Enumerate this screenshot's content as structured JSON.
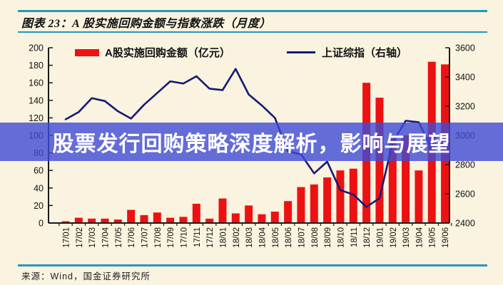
{
  "header": {
    "title": "图表 23：A 股实施回购金额与指数涨跌（月度）"
  },
  "legend": {
    "items": [
      {
        "label": "A股实施回购金额（亿元）",
        "swatch": "bar-swatch",
        "color": "#ee1111"
      },
      {
        "label": "上证综指（右轴）",
        "swatch": "line-swatch",
        "color": "#181878"
      }
    ]
  },
  "watermark": {
    "text": "股票发行回购策略深度解析，影响与展望"
  },
  "footer": {
    "source": "来源：Wind，国金证券研究所"
  },
  "colors": {
    "background": "#f9f3df",
    "rule": "#2499bd",
    "bar": "#ee1111",
    "line": "#181878",
    "axis": "#1a1a1a",
    "band": "rgba(62,74,214,0.80)"
  },
  "chart_data": {
    "type": "bar",
    "title": "图表 23：A 股实施回购金额与指数涨跌（月度）",
    "categories": [
      "17/01",
      "17/02",
      "17/03",
      "17/04",
      "17/05",
      "17/06",
      "17/07",
      "17/08",
      "17/09",
      "17/10",
      "17/11",
      "17/12",
      "18/01",
      "18/02",
      "18/03",
      "18/04",
      "18/05",
      "18/06",
      "18/07",
      "18/08",
      "18/09",
      "18/10",
      "18/11",
      "18/12",
      "19/01",
      "19/02",
      "19/03",
      "19/04",
      "19/05",
      "19/06"
    ],
    "series": [
      {
        "name": "A股实施回购金额（亿元）",
        "type": "bar",
        "axis": "left",
        "values": [
          2,
          6,
          5,
          5,
          4,
          15,
          9,
          12,
          6,
          7,
          22,
          5,
          28,
          11,
          20,
          10,
          13,
          25,
          41,
          44,
          52,
          60,
          62,
          160,
          143,
          100,
          100,
          60,
          184,
          181
        ]
      },
      {
        "name": "上证综指（右轴）",
        "type": "line",
        "axis": "right",
        "values": [
          3110,
          3160,
          3255,
          3235,
          3165,
          3115,
          3210,
          3290,
          3370,
          3355,
          3405,
          3320,
          3310,
          3455,
          3280,
          3205,
          3120,
          2890,
          2870,
          2740,
          2820,
          2625,
          2595,
          2510,
          2570,
          2950,
          3100,
          3090,
          2910,
          2980
        ]
      }
    ],
    "left_axis": {
      "label": "",
      "min": 0,
      "max": 200,
      "ticks": [
        0,
        20,
        40,
        60,
        80,
        100,
        120,
        140,
        160,
        180,
        200
      ]
    },
    "right_axis": {
      "label": "",
      "min": 2400,
      "max": 3600,
      "ticks": [
        2400,
        2600,
        2800,
        3000,
        3200,
        3400,
        3600
      ]
    },
    "grid": false,
    "legend_position": "top-inside"
  }
}
